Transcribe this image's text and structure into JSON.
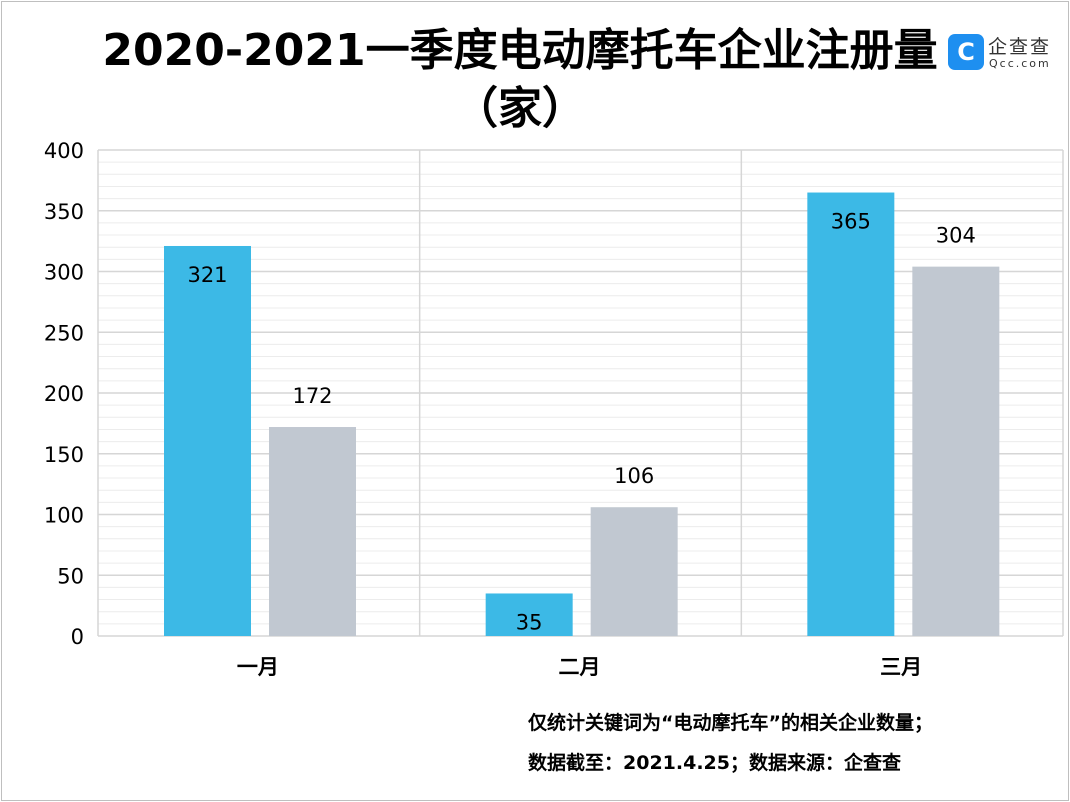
{
  "chart_data": {
    "type": "bar",
    "title": "2020-2021一季度电动摩托车企业注册量（家）",
    "categories": [
      "一月",
      "二月",
      "三月"
    ],
    "series": [
      {
        "values": [
          321,
          35,
          365
        ],
        "color": "#3cb9e6"
      },
      {
        "values": [
          172,
          106,
          304
        ],
        "color": "#c1c8d1"
      }
    ],
    "ylim": [
      0,
      400
    ],
    "yticks": [
      0,
      50,
      100,
      150,
      200,
      250,
      300,
      350,
      400
    ],
    "grid": true,
    "xlabel": "",
    "ylabel": ""
  },
  "logo": {
    "badge": "C",
    "name": "企查查",
    "domain": "Qcc.com"
  },
  "notes": [
    "仅统计关键词为“电动摩托车”的相关企业数量；",
    "数据截至：2021.4.25；数据来源：企查查"
  ]
}
